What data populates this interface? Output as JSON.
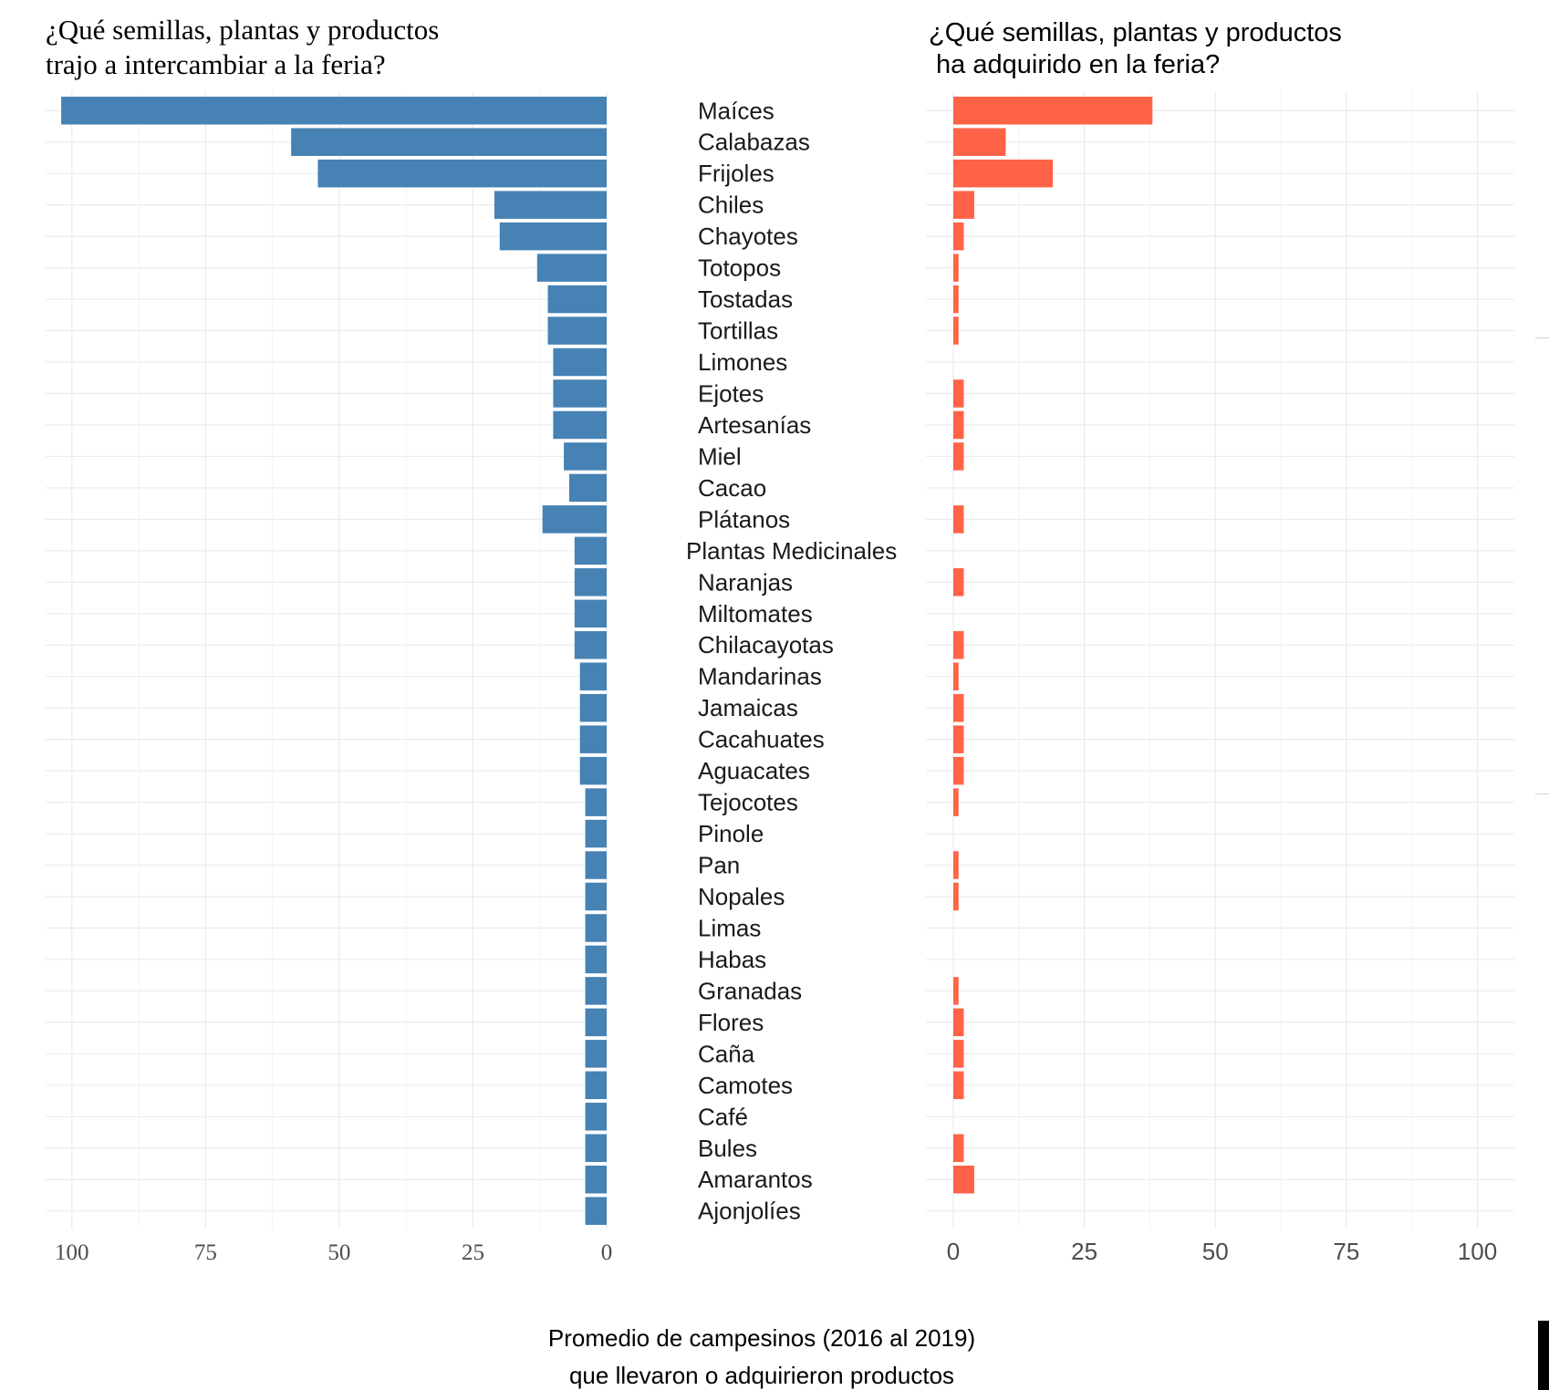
{
  "chart_data": {
    "type": "bar",
    "categories": [
      "Maíces",
      "Calabazas",
      "Frijoles",
      "Chiles",
      "Chayotes",
      "Totopos",
      "Tostadas",
      "Tortillas",
      "Limones",
      "Ejotes",
      "Artesanías",
      "Miel",
      "Cacao",
      "Plátanos",
      "Plantas Medicinales",
      "Naranjas",
      "Miltomates",
      "Chilacayotas",
      "Mandarinas",
      "Jamaicas",
      "Cacahuates",
      "Aguacates",
      "Tejocotes",
      "Pinole",
      "Pan",
      "Nopales",
      "Limas",
      "Habas",
      "Granadas",
      "Flores",
      "Caña",
      "Camotes",
      "Café",
      "Bules",
      "Amarantos",
      "Ajonjolíes"
    ],
    "panels": [
      {
        "title_lines": [
          "¿Qué semillas, plantas y productos",
          "trajo a intercambiar a la feria?"
        ],
        "series_color": "#4682B4",
        "direction": "reversed",
        "xlim": [
          0,
          105
        ],
        "ticks": [
          0,
          25,
          50,
          75,
          100
        ],
        "tick_labels": [
          "0",
          "25",
          "50",
          "75",
          "100"
        ],
        "values": [
          102,
          59,
          54,
          21,
          20,
          13,
          11,
          11,
          10,
          10,
          10,
          8,
          7,
          12,
          6,
          6,
          6,
          6,
          5,
          5,
          5,
          5,
          4,
          4,
          4,
          4,
          4,
          4,
          4,
          4,
          4,
          4,
          4,
          4,
          4,
          4
        ]
      },
      {
        "title_lines": [
          "¿Qué semillas, plantas y productos",
          " ha adquirido en la feria?"
        ],
        "series_color": "#FF6347",
        "direction": "normal",
        "xlim": [
          0,
          105
        ],
        "ticks": [
          0,
          25,
          50,
          75,
          100
        ],
        "tick_labels": [
          "0",
          "25",
          "50",
          "75",
          "100"
        ],
        "values": [
          38,
          10,
          19,
          4,
          2,
          1,
          1,
          1,
          0,
          2,
          2,
          2,
          0,
          2,
          0,
          2,
          0,
          2,
          1,
          2,
          2,
          2,
          1,
          0,
          1,
          1,
          0,
          0,
          1,
          2,
          2,
          2,
          0,
          2,
          4,
          0
        ]
      }
    ],
    "caption_lines": [
      "Promedio de campesinos (2016 al 2019)",
      "que llevaron o adquirieron productos"
    ],
    "grid": true
  }
}
